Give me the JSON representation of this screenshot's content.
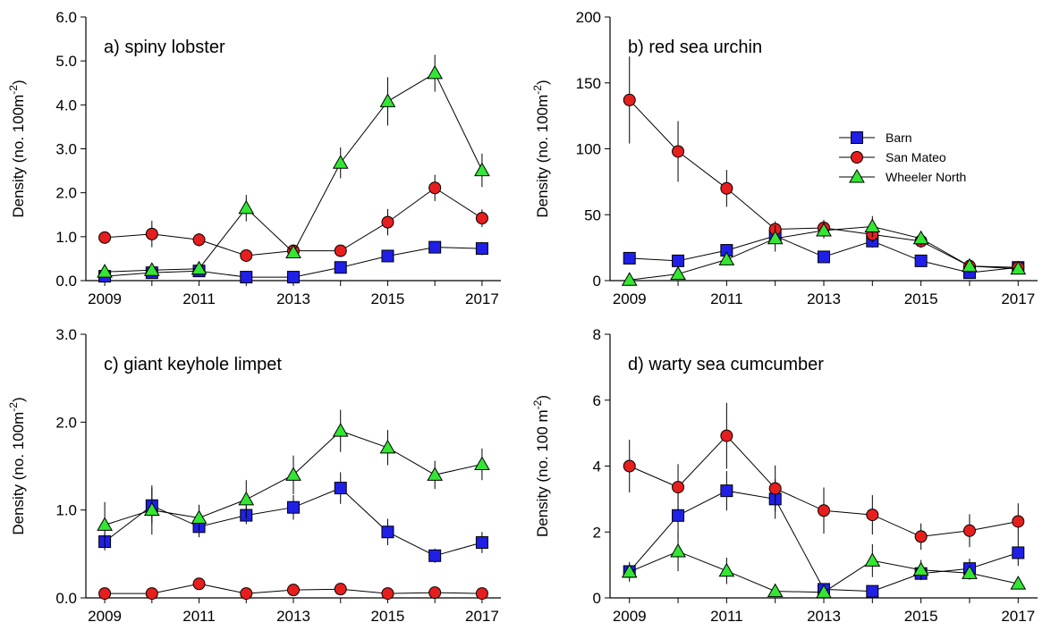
{
  "colors": {
    "Barn": "#1f1fe6",
    "San Mateo": "#e61e1e",
    "Wheeler North": "#33e633"
  },
  "chart_data": [
    {
      "type": "line",
      "title": "a) spiny lobster",
      "ylabel": "Density (no. 100m⁻²)",
      "xlabel": "",
      "xlim": [
        2008.6,
        2017.4
      ],
      "ylim": [
        0,
        6
      ],
      "x_ticks": [
        2009,
        2011,
        2013,
        2015,
        2017
      ],
      "x_tick_labels": [
        "2009",
        "2011",
        "2013",
        "2015",
        "2017"
      ],
      "y_ticks": [
        0,
        1,
        2,
        3,
        4,
        5,
        6
      ],
      "y_tick_labels": [
        "0.0",
        "1.0",
        "2.0",
        "3.0",
        "4.0",
        "5.0",
        "6.0"
      ],
      "legend": false,
      "x": [
        2009,
        2010,
        2011,
        2012,
        2013,
        2014,
        2015,
        2016,
        2017
      ],
      "series": [
        {
          "name": "Barn",
          "marker": "square",
          "values": [
            0.1,
            0.18,
            0.22,
            0.08,
            0.08,
            0.3,
            0.56,
            0.76,
            0.73
          ],
          "errors": [
            0,
            0,
            0,
            0,
            0,
            0.06,
            0.1,
            0.12,
            0.15
          ]
        },
        {
          "name": "San Mateo",
          "marker": "circle",
          "values": [
            0.98,
            1.06,
            0.93,
            0.57,
            0.68,
            0.68,
            1.33,
            2.11,
            1.42
          ],
          "errors": [
            0.1,
            0.3,
            0.15,
            0.1,
            0.08,
            0.1,
            0.3,
            0.3,
            0.2
          ]
        },
        {
          "name": "Wheeler North",
          "marker": "triangle",
          "values": [
            0.2,
            0.24,
            0.27,
            1.65,
            0.64,
            2.68,
            4.08,
            4.72,
            2.51
          ],
          "errors": [
            0,
            0.05,
            0.05,
            0.3,
            0.1,
            0.35,
            0.55,
            0.42,
            0.38
          ]
        }
      ]
    },
    {
      "type": "line",
      "title": "b) red sea urchin",
      "ylabel": "Density (no. 100m⁻²)",
      "xlabel": "",
      "xlim": [
        2008.6,
        2017.4
      ],
      "ylim": [
        0,
        200
      ],
      "x_ticks": [
        2009,
        2011,
        2013,
        2015,
        2017
      ],
      "x_tick_labels": [
        "2009",
        "2011",
        "2013",
        "2015",
        "2017"
      ],
      "y_ticks": [
        0,
        50,
        100,
        150,
        200
      ],
      "y_tick_labels": [
        "0",
        "50",
        "100",
        "150",
        "200"
      ],
      "legend": true,
      "legend_position": "top-right",
      "x": [
        2009,
        2010,
        2011,
        2012,
        2013,
        2014,
        2015,
        2016,
        2017
      ],
      "series": [
        {
          "name": "Barn",
          "marker": "square",
          "values": [
            17,
            15,
            23,
            34,
            18,
            30,
            15,
            6,
            10
          ],
          "errors": [
            4,
            3,
            4,
            5,
            3,
            5,
            3,
            2,
            2
          ]
        },
        {
          "name": "San Mateo",
          "marker": "circle",
          "values": [
            137,
            98,
            70,
            39,
            40,
            35,
            30,
            11,
            10
          ],
          "errors": [
            33,
            23,
            14,
            6,
            6,
            6,
            5,
            3,
            2
          ]
        },
        {
          "name": "Wheeler North",
          "marker": "triangle",
          "values": [
            0.5,
            5,
            16,
            32,
            38,
            41,
            32,
            11,
            9
          ],
          "errors": [
            0,
            2,
            4,
            10,
            6,
            8,
            5,
            3,
            2
          ]
        }
      ]
    },
    {
      "type": "line",
      "title": "c) giant keyhole limpet",
      "ylabel": "Density (no. 100m⁻²)",
      "xlabel": "",
      "xlim": [
        2008.6,
        2017.4
      ],
      "ylim": [
        0,
        3
      ],
      "x_ticks": [
        2009,
        2011,
        2013,
        2015,
        2017
      ],
      "x_tick_labels": [
        "2009",
        "2011",
        "2013",
        "2015",
        "2017"
      ],
      "y_ticks": [
        0,
        1,
        2,
        3
      ],
      "y_tick_labels": [
        "0.0",
        "1.0",
        "2.0",
        "3.0"
      ],
      "legend": false,
      "x": [
        2009,
        2010,
        2011,
        2012,
        2013,
        2014,
        2015,
        2016,
        2017
      ],
      "series": [
        {
          "name": "Barn",
          "marker": "square",
          "values": [
            0.64,
            1.05,
            0.81,
            0.94,
            1.03,
            1.25,
            0.75,
            0.48,
            0.63
          ],
          "errors": [
            0.1,
            0.2,
            0.12,
            0.1,
            0.14,
            0.18,
            0.15,
            0.08,
            0.12
          ]
        },
        {
          "name": "San Mateo",
          "marker": "circle",
          "values": [
            0.05,
            0.05,
            0.16,
            0.05,
            0.09,
            0.1,
            0.05,
            0.06,
            0.05
          ],
          "errors": [
            0,
            0,
            0.02,
            0,
            0.02,
            0.02,
            0,
            0.01,
            0
          ]
        },
        {
          "name": "Wheeler North",
          "marker": "triangle",
          "values": [
            0.83,
            1.0,
            0.91,
            1.12,
            1.4,
            1.9,
            1.71,
            1.4,
            1.52
          ],
          "errors": [
            0.26,
            0.28,
            0.15,
            0.22,
            0.22,
            0.24,
            0.2,
            0.16,
            0.18
          ]
        }
      ]
    },
    {
      "type": "line",
      "title": "d) warty sea cumcumber",
      "ylabel": "Density (no. 100 m⁻²)",
      "xlabel": "",
      "xlim": [
        2008.6,
        2017.4
      ],
      "ylim": [
        0,
        8
      ],
      "x_ticks": [
        2009,
        2011,
        2013,
        2015,
        2017
      ],
      "x_tick_labels": [
        "2009",
        "2011",
        "2013",
        "2015",
        "2017"
      ],
      "y_ticks": [
        0,
        2,
        4,
        6,
        8
      ],
      "y_tick_labels": [
        "0",
        "2",
        "4",
        "6",
        "8"
      ],
      "legend": false,
      "x": [
        2009,
        2010,
        2011,
        2012,
        2013,
        2014,
        2015,
        2016,
        2017
      ],
      "series": [
        {
          "name": "Barn",
          "marker": "square",
          "values": [
            0.8,
            2.5,
            3.25,
            3.0,
            0.26,
            0.2,
            0.74,
            0.89,
            1.37
          ],
          "errors": [
            0.2,
            0.7,
            0.6,
            0.6,
            0.1,
            0.1,
            0.2,
            0.3,
            0.4
          ]
        },
        {
          "name": "San Mateo",
          "marker": "circle",
          "values": [
            4.0,
            3.36,
            4.92,
            3.32,
            2.65,
            2.52,
            1.86,
            2.04,
            2.32
          ],
          "errors": [
            0.8,
            0.7,
            1.0,
            0.7,
            0.7,
            0.6,
            0.4,
            0.5,
            0.55
          ]
        },
        {
          "name": "Wheeler North",
          "marker": "triangle",
          "values": [
            0.79,
            1.41,
            0.82,
            0.2,
            0.17,
            1.13,
            0.85,
            0.75,
            0.43
          ],
          "errors": [
            0.3,
            0.6,
            0.4,
            0.05,
            0.05,
            0.5,
            0.3,
            0.2,
            0.15
          ]
        }
      ]
    }
  ]
}
